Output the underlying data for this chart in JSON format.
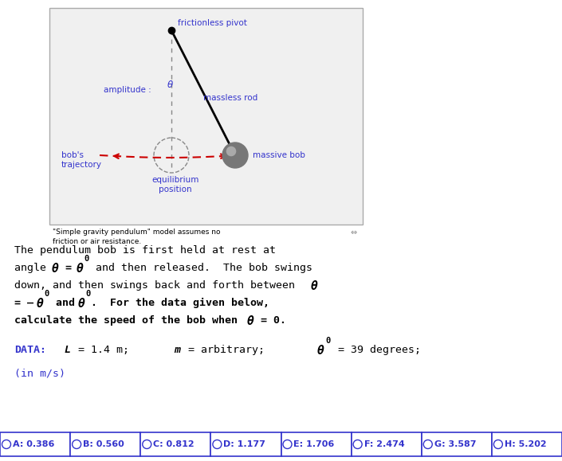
{
  "bg_color": "#ffffff",
  "box_edge_color": "#aaaaaa",
  "box_bg_color": "#f0f0f0",
  "blue": "#3333cc",
  "black": "#000000",
  "red_traj": "#cc0000",
  "gray_dash": "#888888",
  "bob_color": "#888888",
  "pivot_label": "frictionless pivot",
  "rod_label": "massless rod",
  "amplitude_label": "amplitude :",
  "bobs_trajectory_label": "bob's\ntrajectory",
  "equilibrium_label": "equilibrium\nposition",
  "massive_bob_label": "massive bob",
  "caption1": "\"Simple gravity pendulum\" model assumes no",
  "caption2": "friction or air resistance.",
  "para1": "The pendulum bob is first held at rest at",
  "para2a": "angle ",
  "para2b": "θ = θ",
  "para2c": "0",
  "para2d": " and then released.  The bob swings",
  "para3a": "down, and then swings back and forth between ",
  "para3b": "θ",
  "para4a": "= –",
  "para4b": "θ",
  "para4c": "0",
  "para4d": " and ",
  "para4e": "θ",
  "para4f": "0",
  "para4g": ".  For the data given below,",
  "para5a": "calculate the speed of the bob when ",
  "para5b": "θ",
  "para5c": " = 0.",
  "answers": [
    {
      "letter": "A",
      "value": "0.386"
    },
    {
      "letter": "B",
      "value": "0.560"
    },
    {
      "letter": "C",
      "value": "0.812"
    },
    {
      "letter": "D",
      "value": "1.177"
    },
    {
      "letter": "E",
      "value": "1.706"
    },
    {
      "letter": "F",
      "value": "2.474"
    },
    {
      "letter": "G",
      "value": "3.587"
    },
    {
      "letter": "H",
      "value": "5.202"
    }
  ]
}
